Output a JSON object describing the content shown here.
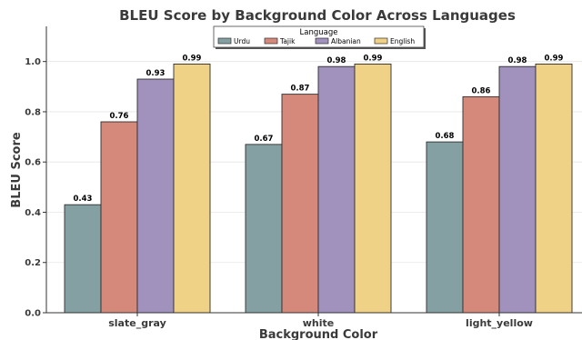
{
  "chart_data": {
    "type": "bar",
    "title": "BLEU Score by Background Color Across Languages",
    "xlabel": "Background Color",
    "ylabel": "BLEU Score",
    "categories": [
      "slate_gray",
      "white",
      "light_yellow"
    ],
    "series": [
      {
        "name": "Urdu",
        "color": "#84a0a2",
        "values": [
          0.43,
          0.67,
          0.68
        ]
      },
      {
        "name": "Tajik",
        "color": "#d4897b",
        "values": [
          0.76,
          0.87,
          0.86
        ]
      },
      {
        "name": "Albanian",
        "color": "#a091bd",
        "values": [
          0.93,
          0.98,
          0.98
        ]
      },
      {
        "name": "English",
        "color": "#efd285",
        "values": [
          0.99,
          0.99,
          0.99
        ]
      }
    ],
    "ylim": [
      0,
      1.14
    ],
    "yticks": [
      "0.0",
      "0.2",
      "0.4",
      "0.6",
      "0.8",
      "1.0"
    ],
    "legend": {
      "title": "Language",
      "placement": "top-center"
    },
    "grid": true
  }
}
